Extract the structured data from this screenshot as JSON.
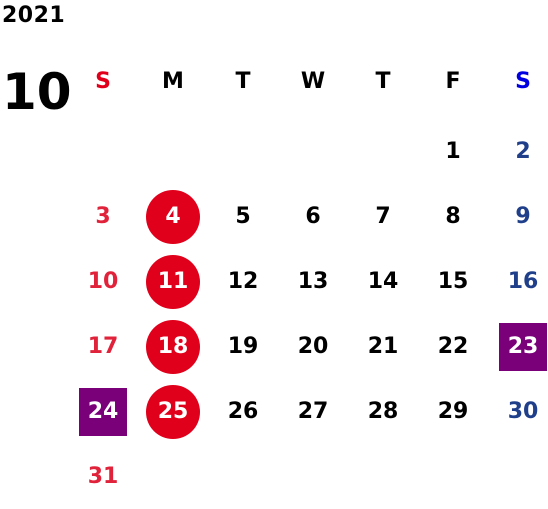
{
  "year": "2021",
  "month": "10",
  "weekdays": [
    "S",
    "M",
    "T",
    "W",
    "T",
    "F",
    "S"
  ],
  "weeks": [
    [
      "",
      "",
      "",
      "",
      "",
      "1",
      "2"
    ],
    [
      "3",
      "4",
      "5",
      "6",
      "7",
      "8",
      "9"
    ],
    [
      "10",
      "11",
      "12",
      "13",
      "14",
      "15",
      "16"
    ],
    [
      "17",
      "18",
      "19",
      "20",
      "21",
      "22",
      "23"
    ],
    [
      "24",
      "25",
      "26",
      "27",
      "28",
      "29",
      "30"
    ],
    [
      "31",
      "",
      "",
      "",
      "",
      "",
      ""
    ]
  ],
  "red_circle_days": [
    "4",
    "11",
    "18",
    "25"
  ],
  "purple_square_days": [
    "23",
    "24"
  ],
  "colors": {
    "sunday": "#e0233a",
    "saturday": "#1f3f8a",
    "sunday_header": "#e0001b",
    "saturday_header": "#0000e0",
    "circle": "#e0001b",
    "square": "#7a007a"
  }
}
